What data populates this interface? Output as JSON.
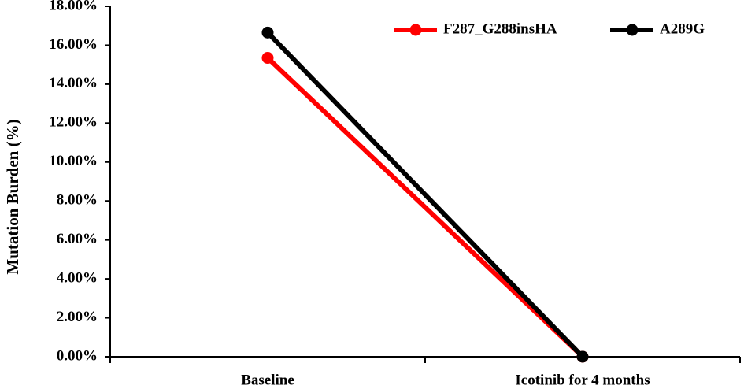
{
  "chart_data": {
    "type": "line",
    "y_label": "Mutation Burden (%)",
    "categories": [
      "Baseline",
      "Icotinib for 4 months"
    ],
    "series": [
      {
        "name": "F287_G288insHA",
        "color": "#ff0000",
        "values": [
          15.35,
          0
        ]
      },
      {
        "name": "A289G",
        "color": "#000000",
        "values": [
          16.65,
          0
        ]
      }
    ],
    "ylim": [
      0,
      18
    ],
    "yticks": [
      {
        "value": 0,
        "label": "0.00%"
      },
      {
        "value": 2,
        "label": "2.00%"
      },
      {
        "value": 4,
        "label": "4.00%"
      },
      {
        "value": 6,
        "label": "6.00%"
      },
      {
        "value": 8,
        "label": "8.00%"
      },
      {
        "value": 10,
        "label": "10.00%"
      },
      {
        "value": 12,
        "label": "12.00%"
      },
      {
        "value": 14,
        "label": "14.00%"
      },
      {
        "value": 16,
        "label": "16.00%"
      },
      {
        "value": 18,
        "label": "18.00%"
      }
    ],
    "grid": false,
    "legend": "upper right"
  }
}
